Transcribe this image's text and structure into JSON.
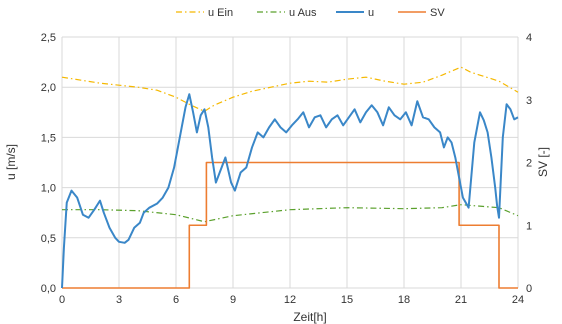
{
  "chart_data": {
    "type": "line",
    "title": "",
    "xlabel": "Zeit[h]",
    "ylabel": "u [m/s]",
    "y2label": "SV [-]",
    "xlim": [
      0,
      24
    ],
    "ylim": [
      0,
      2.5
    ],
    "y2lim": [
      0,
      4
    ],
    "x_ticks": [
      0,
      3,
      6,
      9,
      12,
      15,
      18,
      21,
      24
    ],
    "x_tick_labels": [
      "0",
      "3",
      "6",
      "9",
      "12",
      "15",
      "18",
      "21",
      "24"
    ],
    "y_ticks": [
      0,
      0.5,
      1.0,
      1.5,
      2.0,
      2.5
    ],
    "y_tick_labels": [
      "0,0",
      "0,5",
      "1,0",
      "1,5",
      "2,0",
      "2,5"
    ],
    "y2_ticks": [
      0,
      1,
      2,
      3,
      4
    ],
    "y2_tick_labels": [
      "0",
      "1",
      "2",
      "3",
      "4"
    ],
    "grid": true,
    "legend_position": "top",
    "series": [
      {
        "name": "u Ein",
        "axis": "left",
        "color": "#f5b800",
        "dash": "dash-dot",
        "x": [
          0,
          1,
          2,
          3,
          4,
          5,
          6,
          6.8,
          7.5,
          8,
          9,
          10,
          11,
          12,
          13,
          14,
          15,
          16,
          17,
          18,
          19,
          20,
          21,
          21.5,
          22,
          23,
          24
        ],
        "y": [
          2.1,
          2.07,
          2.04,
          2.02,
          2.0,
          1.97,
          1.9,
          1.82,
          1.76,
          1.82,
          1.9,
          1.96,
          2.0,
          2.04,
          2.06,
          2.05,
          2.08,
          2.1,
          2.06,
          2.03,
          2.05,
          2.12,
          2.2,
          2.15,
          2.12,
          2.06,
          1.95
        ]
      },
      {
        "name": "u Aus",
        "axis": "left",
        "color": "#5aa02c",
        "dash": "dash-dot",
        "x": [
          0,
          2,
          4,
          6,
          7.5,
          9,
          12,
          15,
          18,
          20,
          21,
          23,
          24
        ],
        "y": [
          0.78,
          0.78,
          0.77,
          0.73,
          0.66,
          0.72,
          0.78,
          0.8,
          0.79,
          0.8,
          0.83,
          0.8,
          0.72
        ]
      },
      {
        "name": "u",
        "axis": "left",
        "color": "#3a87c8",
        "dash": "solid",
        "x": [
          0,
          0.1,
          0.25,
          0.5,
          0.8,
          1.1,
          1.4,
          1.7,
          2.0,
          2.2,
          2.5,
          2.8,
          3.0,
          3.3,
          3.5,
          3.8,
          4.1,
          4.3,
          4.6,
          5.0,
          5.3,
          5.6,
          5.9,
          6.1,
          6.3,
          6.5,
          6.7,
          6.9,
          7.1,
          7.3,
          7.5,
          7.7,
          7.9,
          8.1,
          8.3,
          8.6,
          8.9,
          9.1,
          9.4,
          9.7,
          10.0,
          10.3,
          10.6,
          10.9,
          11.2,
          11.5,
          11.8,
          12.1,
          12.4,
          12.7,
          13.0,
          13.3,
          13.6,
          13.9,
          14.2,
          14.5,
          14.8,
          15.1,
          15.4,
          15.7,
          16.0,
          16.3,
          16.6,
          16.9,
          17.2,
          17.5,
          17.8,
          18.1,
          18.4,
          18.7,
          19.0,
          19.3,
          19.6,
          19.9,
          20.1,
          20.3,
          20.5,
          20.7,
          20.9,
          21.1,
          21.4,
          21.7,
          22.0,
          22.2,
          22.4,
          22.6,
          22.8,
          22.9,
          23.0,
          23.2,
          23.4,
          23.6,
          23.8,
          24.0
        ],
        "y": [
          0.0,
          0.4,
          0.85,
          0.97,
          0.9,
          0.73,
          0.7,
          0.78,
          0.87,
          0.75,
          0.6,
          0.5,
          0.46,
          0.45,
          0.48,
          0.6,
          0.65,
          0.75,
          0.8,
          0.84,
          0.9,
          1.0,
          1.2,
          1.4,
          1.6,
          1.8,
          1.93,
          1.75,
          1.55,
          1.72,
          1.78,
          1.6,
          1.3,
          1.05,
          1.15,
          1.3,
          1.05,
          0.97,
          1.15,
          1.2,
          1.4,
          1.55,
          1.5,
          1.6,
          1.68,
          1.6,
          1.55,
          1.62,
          1.68,
          1.75,
          1.6,
          1.7,
          1.72,
          1.6,
          1.68,
          1.72,
          1.62,
          1.7,
          1.78,
          1.65,
          1.75,
          1.82,
          1.75,
          1.62,
          1.8,
          1.72,
          1.68,
          1.75,
          1.62,
          1.86,
          1.7,
          1.68,
          1.6,
          1.55,
          1.4,
          1.5,
          1.45,
          1.3,
          1.1,
          0.9,
          0.8,
          1.45,
          1.75,
          1.67,
          1.55,
          1.3,
          1.0,
          0.82,
          0.7,
          1.5,
          1.83,
          1.78,
          1.68,
          1.7
        ]
      },
      {
        "name": "SV",
        "axis": "right",
        "color": "#ed7d31",
        "dash": "solid",
        "step": true,
        "x": [
          0,
          6.7,
          6.7,
          7.6,
          7.6,
          8.0,
          8.0,
          20.9,
          20.9,
          23.0,
          23.0,
          24
        ],
        "y": [
          0,
          0,
          1,
          1,
          2,
          2,
          2,
          2,
          1,
          1,
          0,
          0
        ]
      }
    ]
  }
}
